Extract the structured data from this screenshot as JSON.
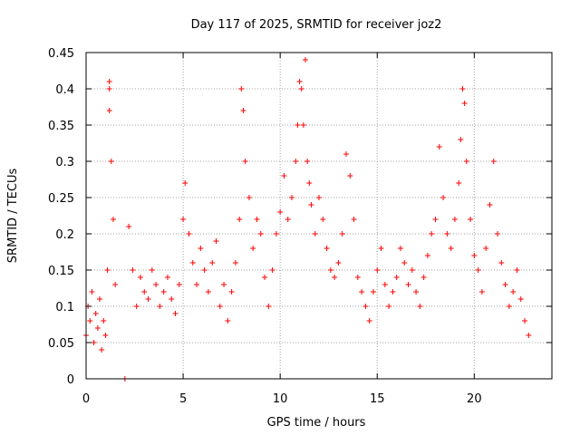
{
  "chart_data": {
    "type": "scatter",
    "title": "Day 117 of 2025, SRMTID for receiver joz2",
    "xlabel": "GPS time / hours",
    "ylabel": "SRMTID / TECUs",
    "xlim": [
      0,
      24
    ],
    "ylim": [
      0,
      0.45
    ],
    "xticks": [
      0,
      5,
      10,
      15,
      20
    ],
    "xtick_labels": [
      "0",
      "5",
      "10",
      "15",
      "20"
    ],
    "yticks": [
      0,
      0.05,
      0.1,
      0.15,
      0.2,
      0.25,
      0.3,
      0.35,
      0.4,
      0.45
    ],
    "ytick_labels": [
      "0",
      "0.05",
      "0.1",
      "0.15",
      "0.2",
      "0.25",
      "0.3",
      "0.35",
      "0.4",
      "0.45"
    ],
    "grid": true,
    "marker": "+",
    "series": [
      {
        "name": "SRMTID",
        "color": "#ff0000",
        "x": [
          0.0,
          0.1,
          0.2,
          0.3,
          0.4,
          0.5,
          0.6,
          0.7,
          0.8,
          0.9,
          1.0,
          1.1,
          1.2,
          1.2,
          1.2,
          1.3,
          1.4,
          1.5,
          2.2,
          2.4,
          2.6,
          2.8,
          3.0,
          3.2,
          3.4,
          3.6,
          3.8,
          4.0,
          4.2,
          4.4,
          4.6,
          4.8,
          5.0,
          5.1,
          5.3,
          5.5,
          5.7,
          5.9,
          6.1,
          6.3,
          6.5,
          6.7,
          6.9,
          7.1,
          7.3,
          7.5,
          7.7,
          7.9,
          8.0,
          8.1,
          8.2,
          8.4,
          8.6,
          8.8,
          9.0,
          9.2,
          9.4,
          9.6,
          9.8,
          10.0,
          10.2,
          10.4,
          10.6,
          10.8,
          10.9,
          11.0,
          11.1,
          11.2,
          11.3,
          11.4,
          11.5,
          11.6,
          11.8,
          12.0,
          12.2,
          12.4,
          12.6,
          12.8,
          13.0,
          13.2,
          13.4,
          13.6,
          13.8,
          14.0,
          14.2,
          14.4,
          14.6,
          14.8,
          15.0,
          15.2,
          15.4,
          15.6,
          15.8,
          16.0,
          16.2,
          16.4,
          16.6,
          16.8,
          17.0,
          17.2,
          17.4,
          17.6,
          17.8,
          18.0,
          18.2,
          18.4,
          18.6,
          18.8,
          19.0,
          19.2,
          19.3,
          19.4,
          19.5,
          19.6,
          19.8,
          20.0,
          20.2,
          20.4,
          20.6,
          20.8,
          21.0,
          21.2,
          21.4,
          21.6,
          21.8,
          22.0,
          22.2,
          22.4,
          22.6,
          22.8
        ],
        "y": [
          0.06,
          0.1,
          0.08,
          0.12,
          0.05,
          0.09,
          0.07,
          0.11,
          0.04,
          0.08,
          0.06,
          0.15,
          0.41,
          0.4,
          0.37,
          0.3,
          0.22,
          0.13,
          0.21,
          0.15,
          0.1,
          0.14,
          0.12,
          0.11,
          0.15,
          0.13,
          0.1,
          0.12,
          0.14,
          0.11,
          0.09,
          0.13,
          0.22,
          0.27,
          0.2,
          0.16,
          0.13,
          0.18,
          0.15,
          0.12,
          0.16,
          0.19,
          0.1,
          0.13,
          0.08,
          0.12,
          0.16,
          0.22,
          0.4,
          0.37,
          0.3,
          0.25,
          0.18,
          0.22,
          0.2,
          0.14,
          0.1,
          0.15,
          0.2,
          0.23,
          0.28,
          0.22,
          0.25,
          0.3,
          0.35,
          0.41,
          0.4,
          0.35,
          0.44,
          0.3,
          0.27,
          0.24,
          0.2,
          0.25,
          0.22,
          0.18,
          0.15,
          0.14,
          0.16,
          0.2,
          0.31,
          0.28,
          0.22,
          0.14,
          0.12,
          0.1,
          0.08,
          0.12,
          0.15,
          0.18,
          0.13,
          0.1,
          0.12,
          0.14,
          0.18,
          0.16,
          0.13,
          0.15,
          0.12,
          0.1,
          0.14,
          0.17,
          0.2,
          0.22,
          0.32,
          0.25,
          0.2,
          0.18,
          0.22,
          0.27,
          0.33,
          0.4,
          0.38,
          0.3,
          0.22,
          0.17,
          0.15,
          0.12,
          0.18,
          0.24,
          0.3,
          0.2,
          0.16,
          0.13,
          0.1,
          0.12,
          0.15,
          0.11,
          0.08,
          0.06
        ],
        "extra_points": [
          [
            2.0,
            0.0
          ]
        ]
      }
    ]
  }
}
